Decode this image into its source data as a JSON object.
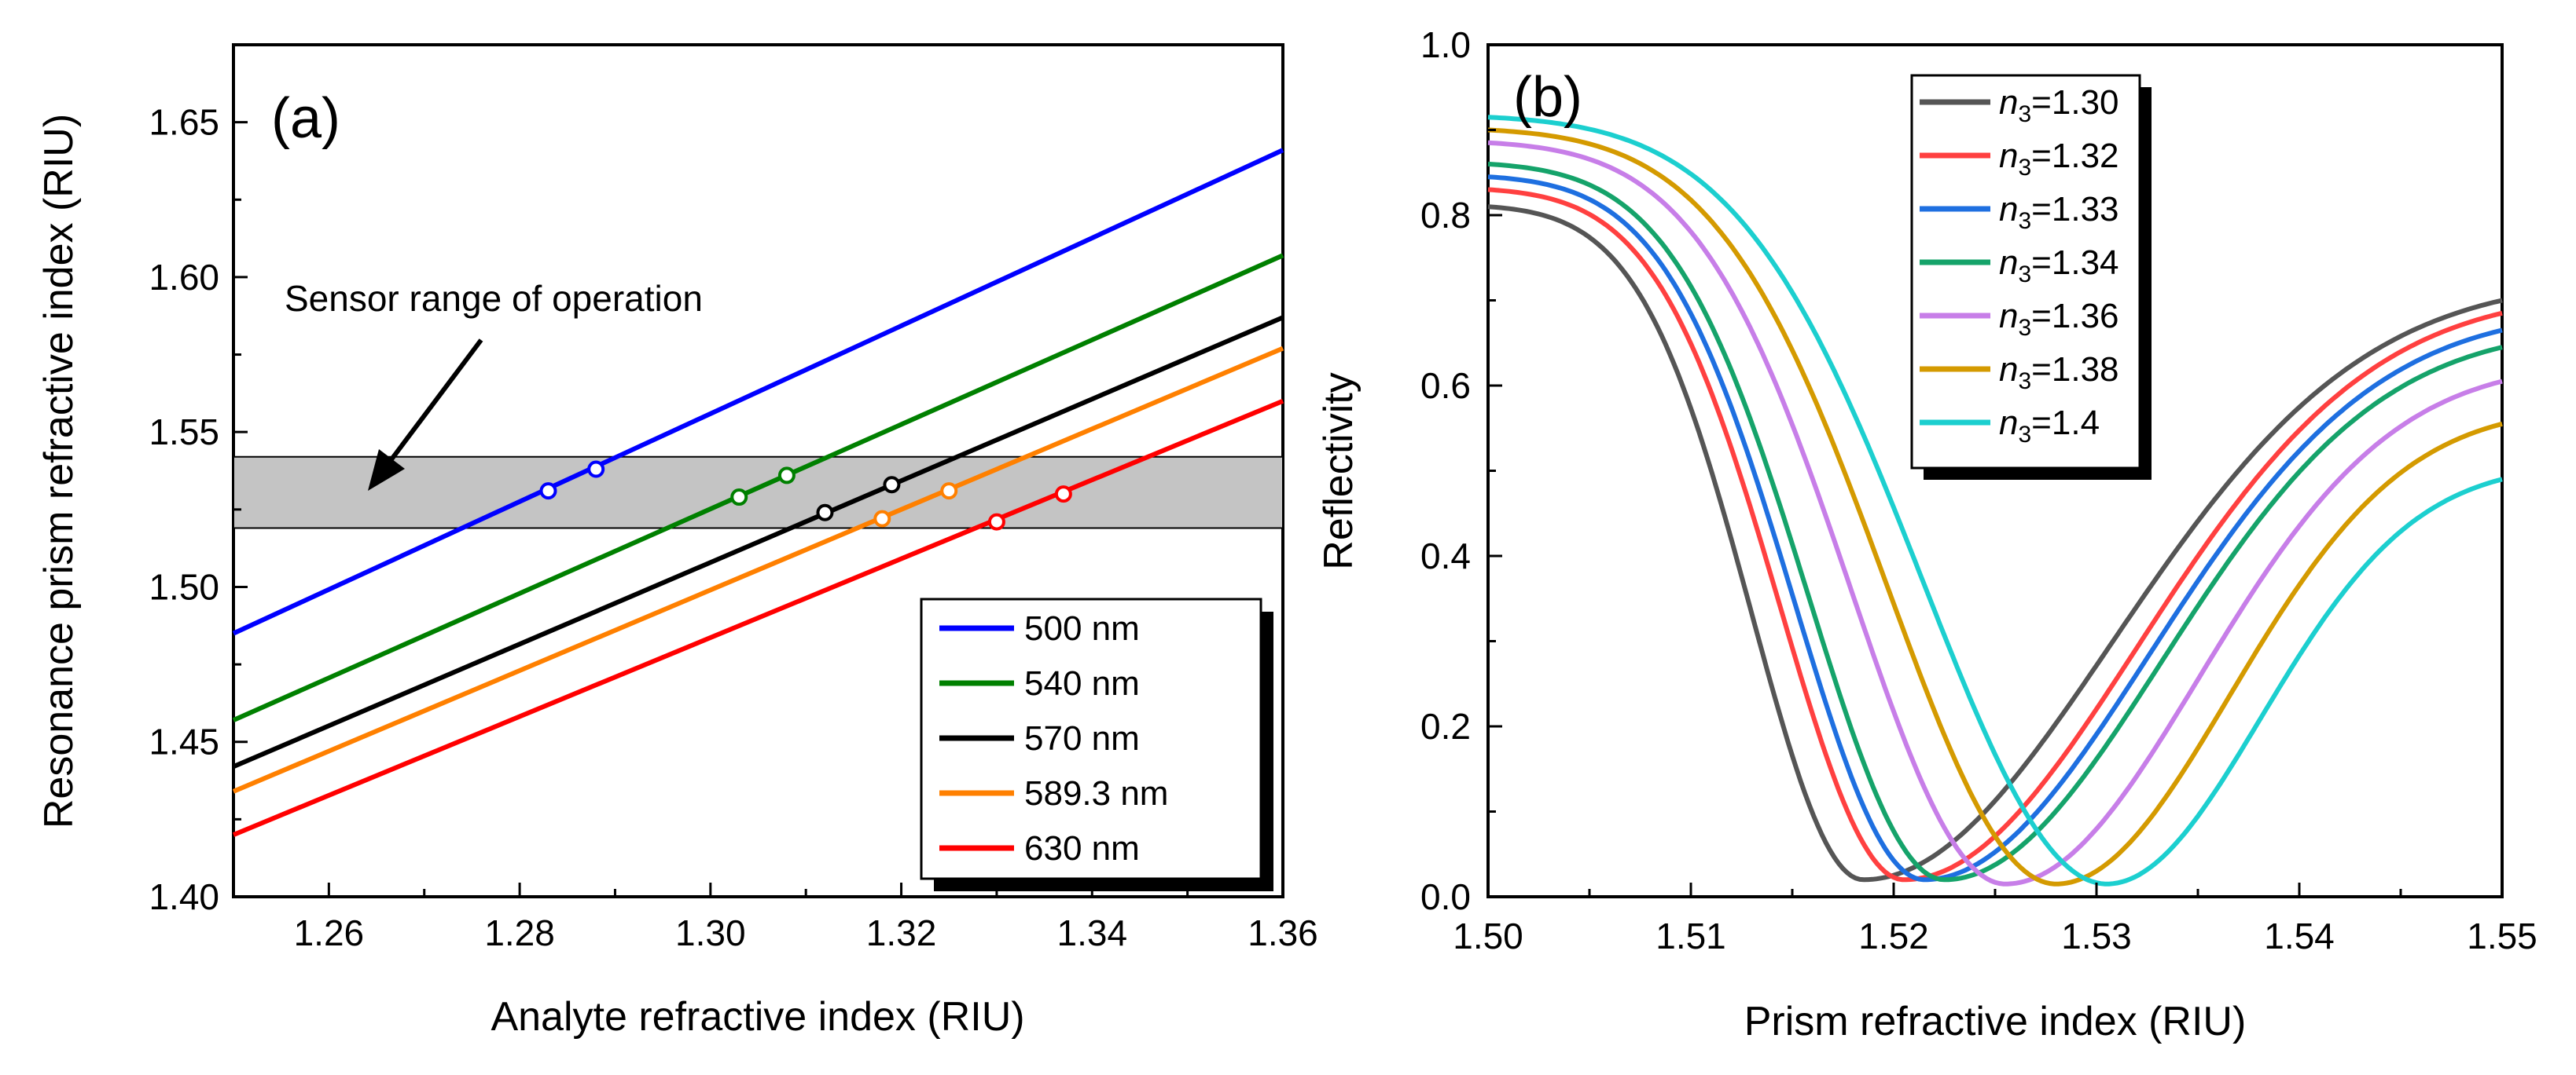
{
  "chart_data": [
    {
      "type": "line",
      "panel_label": "(a)",
      "xlabel": "Analyte refractive index (RIU)",
      "ylabel": "Resonance prism refractive index  (RIU)",
      "xlim": [
        1.25,
        1.36
      ],
      "ylim": [
        1.4,
        1.675
      ],
      "xticks": [
        1.26,
        1.28,
        1.3,
        1.32,
        1.34,
        1.36
      ],
      "xtick_labels": [
        "1.26",
        "1.28",
        "1.30",
        "1.32",
        "1.34",
        "1.36"
      ],
      "yticks": [
        1.4,
        1.45,
        1.5,
        1.55,
        1.6,
        1.65
      ],
      "ytick_labels": [
        "1.40",
        "1.45",
        "1.50",
        "1.55",
        "1.60",
        "1.65"
      ],
      "annotation": "Sensor range of operation",
      "band": [
        1.519,
        1.542
      ],
      "legend_position": "bottom-right",
      "series": [
        {
          "name": "500 nm",
          "color": "#0000ff",
          "x": [
            1.25,
            1.36
          ],
          "y": [
            1.485,
            1.641
          ],
          "markers": [
            [
              1.283,
              1.531
            ],
            [
              1.288,
              1.538
            ]
          ]
        },
        {
          "name": "540 nm",
          "color": "#008000",
          "x": [
            1.25,
            1.36
          ],
          "y": [
            1.457,
            1.607
          ],
          "markers": [
            [
              1.303,
              1.529
            ],
            [
              1.308,
              1.536
            ]
          ]
        },
        {
          "name": "570 nm",
          "color": "#000000",
          "x": [
            1.25,
            1.36
          ],
          "y": [
            1.442,
            1.587
          ],
          "markers": [
            [
              1.312,
              1.524
            ],
            [
              1.319,
              1.533
            ]
          ]
        },
        {
          "name": "589.3 nm",
          "color": "#ff8000",
          "x": [
            1.25,
            1.36
          ],
          "y": [
            1.434,
            1.577
          ],
          "markers": [
            [
              1.318,
              1.522
            ],
            [
              1.325,
              1.531
            ]
          ]
        },
        {
          "name": "630 nm",
          "color": "#ff0000",
          "x": [
            1.25,
            1.36
          ],
          "y": [
            1.42,
            1.56
          ],
          "markers": [
            [
              1.33,
              1.521
            ],
            [
              1.337,
              1.53
            ]
          ]
        }
      ]
    },
    {
      "type": "line",
      "panel_label": "(b)",
      "xlabel": "Prism refractive index (RIU)",
      "ylabel": "Reflectivity",
      "xlim": [
        1.5,
        1.55
      ],
      "ylim": [
        0.0,
        1.0
      ],
      "xticks": [
        1.5,
        1.51,
        1.52,
        1.53,
        1.54,
        1.55
      ],
      "xtick_labels": [
        "1.50",
        "1.51",
        "1.52",
        "1.53",
        "1.54",
        "1.55"
      ],
      "yticks": [
        0.0,
        0.2,
        0.4,
        0.6,
        0.8,
        1.0
      ],
      "ytick_labels": [
        "0.0",
        "0.2",
        "0.4",
        "0.6",
        "0.8",
        "1.0"
      ],
      "legend_position": "top-center",
      "legend_symbol": "n",
      "legend_subscript": "3",
      "series": [
        {
          "name": "=1.30",
          "color": "#555555",
          "start": 0.81,
          "dip_x": 1.5185,
          "dip_y": 0.02,
          "end": 0.7
        },
        {
          "name": "=1.32",
          "color": "#ff4040",
          "start": 0.83,
          "dip_x": 1.5205,
          "dip_y": 0.02,
          "end": 0.685
        },
        {
          "name": "=1.33",
          "color": "#1e6fe0",
          "start": 0.845,
          "dip_x": 1.5215,
          "dip_y": 0.02,
          "end": 0.665
        },
        {
          "name": "=1.34",
          "color": "#15a36a",
          "start": 0.86,
          "dip_x": 1.5225,
          "dip_y": 0.02,
          "end": 0.645
        },
        {
          "name": "=1.36",
          "color": "#c77ee8",
          "start": 0.885,
          "dip_x": 1.5255,
          "dip_y": 0.015,
          "end": 0.605
        },
        {
          "name": "=1.38",
          "color": "#d49a00",
          "start": 0.9,
          "dip_x": 1.528,
          "dip_y": 0.015,
          "end": 0.555
        },
        {
          "name": "=1.4",
          "color": "#1ccfcf",
          "start": 0.915,
          "dip_x": 1.5305,
          "dip_y": 0.015,
          "end": 0.49
        }
      ]
    }
  ]
}
